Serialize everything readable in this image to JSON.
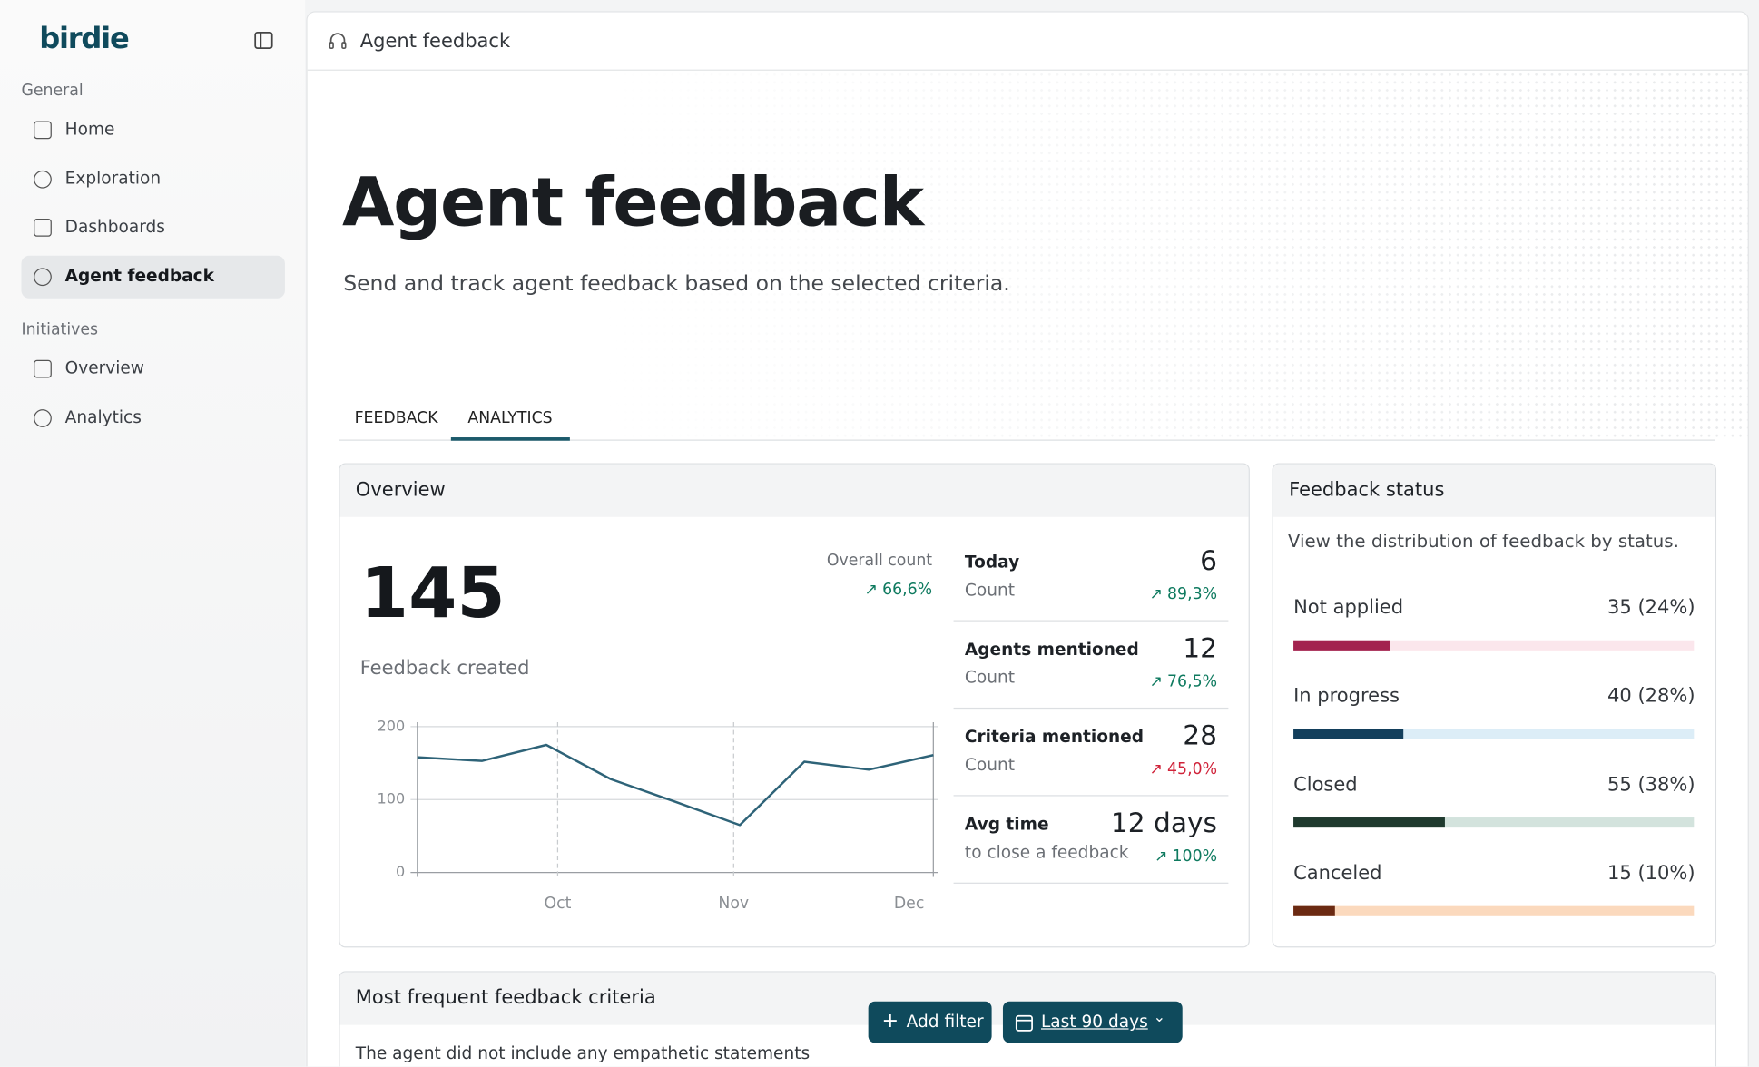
{
  "sidebar": {
    "logo": "birdie",
    "sections": [
      {
        "title": "General",
        "items": [
          "Home",
          "Exploration",
          "Dashboards",
          "Agent feedback"
        ]
      },
      {
        "title": "Initiatives",
        "items": [
          "Overview",
          "Analytics"
        ]
      }
    ]
  },
  "header": {
    "title": "Agent feedback"
  },
  "page": {
    "title": "Agent feedback",
    "subtitle": "Send and track agent feedback based on the selected criteria."
  },
  "tabs": [
    "FEEDBACK",
    "ANALYTICS"
  ],
  "overview": {
    "title": "Overview",
    "total": 145,
    "total_label": "Feedback created",
    "overall_label": "Overall count",
    "overall_change": "66,6%",
    "kpis": [
      {
        "title": "Today",
        "value": "6",
        "sub": "Count",
        "change": "89,3%",
        "change_color": "#0e7a5f"
      },
      {
        "title": "Agents mentioned",
        "value": "12",
        "sub": "Count",
        "change": "76,5%",
        "change_color": "#0e7a5f"
      },
      {
        "title": "Criteria mentioned",
        "value": "28",
        "sub": "Count",
        "change": "45,0%",
        "change_color": "#d0233a"
      },
      {
        "title": "Avg time",
        "value": "12 days",
        "sub": "to close a feedback",
        "change": "100%",
        "change_color": "#0e7a5f"
      }
    ]
  },
  "chart_data": {
    "type": "line",
    "categories": [
      null,
      null,
      null,
      null,
      null,
      null,
      null,
      null,
      null
    ],
    "x_labels": [
      "Oct",
      "Nov",
      "Dec"
    ],
    "values": [
      158,
      153,
      175,
      128,
      97,
      65,
      152,
      141,
      161
    ],
    "ylim": [
      0,
      200
    ],
    "yticks": [
      0,
      100,
      200
    ],
    "color": "#2e6378",
    "grid": true
  },
  "status": {
    "title": "Feedback status",
    "description": "View the distribution of feedback by status.",
    "items": [
      {
        "name": "Not applied",
        "value": 35,
        "value_label": "35 (24%)",
        "color": "#a3234f",
        "track": "#fbe6ec"
      },
      {
        "name": "In progress",
        "value": 40,
        "value_label": "40 (28%)",
        "color": "#133f5c",
        "track": "#dcedf7"
      },
      {
        "name": "Closed",
        "value": 55,
        "value_label": "55 (38%)",
        "color": "#1f3a2e",
        "track": "#d3e3dd"
      },
      {
        "name": "Canceled",
        "value": 15,
        "value_label": "15 (10%)",
        "color": "#6b2a12",
        "track": "#fbd9bd"
      }
    ]
  },
  "criteria": {
    "title": "Most frequent feedback criteria",
    "first_row": "The agent did not include any empathetic statements"
  },
  "buttons": {
    "add_filter": "Add filter",
    "date_range": "Last 90 days"
  }
}
